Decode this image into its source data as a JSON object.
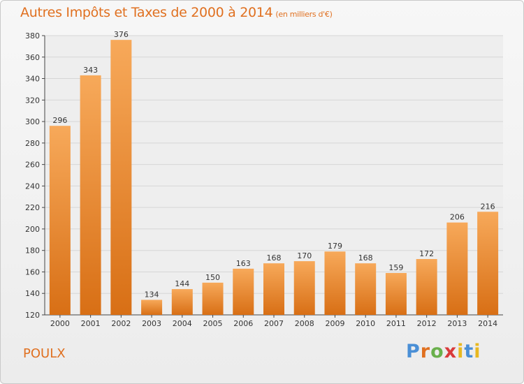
{
  "chart_data": {
    "type": "bar",
    "title": "Autres Impôts et Taxes de 2000 à 2014",
    "subtitle": "(en milliers d'€)",
    "categories": [
      "2000",
      "2001",
      "2002",
      "2003",
      "2004",
      "2005",
      "2006",
      "2007",
      "2008",
      "2009",
      "2010",
      "2011",
      "2012",
      "2013",
      "2014"
    ],
    "values": [
      296,
      343,
      376,
      134,
      144,
      150,
      163,
      168,
      170,
      179,
      168,
      159,
      172,
      206,
      216
    ],
    "xlabel": "",
    "ylabel": "",
    "ylim": [
      120,
      380
    ],
    "yticks": [
      120,
      140,
      160,
      180,
      200,
      220,
      240,
      260,
      280,
      300,
      320,
      340,
      360,
      380
    ],
    "grid": true,
    "bar_color": "#e8892f"
  },
  "place_name": "POULX",
  "logo": {
    "letters": [
      "P",
      "r",
      "o",
      "x",
      "i",
      "t",
      "i"
    ],
    "colors": [
      "#4a8fd6",
      "#e07020",
      "#6ab04c",
      "#d93a3a",
      "#e8b820",
      "#4a8fd6",
      "#e8b820"
    ]
  }
}
